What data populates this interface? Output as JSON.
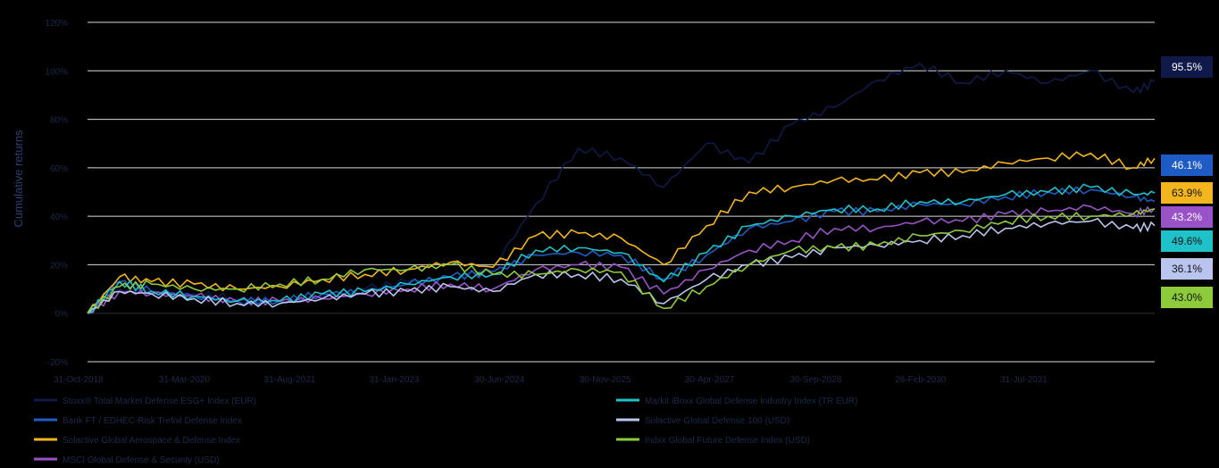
{
  "chart_data": {
    "type": "line",
    "title": "",
    "xlabel": "",
    "ylabel": "Cumulative returns",
    "ylim": [
      -20,
      120
    ],
    "yticks": [
      -20,
      0,
      20,
      40,
      60,
      80,
      100,
      120
    ],
    "ytick_labels": [
      "-20%",
      "0%",
      "20%",
      "40%",
      "60%",
      "80%",
      "100%",
      "120%"
    ],
    "x_tick_labels": [
      "31-Oct-2018",
      "31-Mar-2020",
      "31-Aug-2021",
      "31-Jan-2023",
      "30-Jun-2024",
      "30-Nov-2025",
      "30-Apr-2027",
      "30-Sep-2028",
      "28-Feb-2030",
      "31-Jul-2031"
    ],
    "x_points": [
      0,
      3,
      6,
      10,
      14,
      18,
      22,
      26,
      30,
      34,
      38,
      42,
      46,
      50,
      54,
      58,
      62,
      66,
      70,
      74,
      78,
      82,
      86,
      90,
      94,
      98,
      100
    ],
    "grid": true,
    "legend_position": "bottom",
    "series": [
      {
        "name": "Stoxx® Total Market Defense ESG+ Index (EUR)",
        "color": "#0f1a4a",
        "end_label": "95.5%",
        "values": [
          0,
          10,
          9,
          8,
          6,
          5,
          7,
          10,
          13,
          14,
          19,
          45,
          68,
          64,
          52,
          70,
          62,
          78,
          85,
          96,
          103,
          95,
          100,
          95,
          100,
          91,
          95.5
        ]
      },
      {
        "name": "Bank FT / EDHEC-Risk Trefoil Defense Index",
        "color": "#1f5bc4",
        "end_label": "46.1%",
        "values": [
          0,
          13,
          9,
          7,
          5,
          5,
          8,
          9,
          12,
          15,
          17,
          24,
          25,
          24,
          14,
          24,
          35,
          38,
          42,
          42,
          45,
          45,
          48,
          50,
          51,
          48,
          46.1
        ]
      },
      {
        "name": "Solactive Global Aerospace & Defense Index",
        "color": "#f2b51d",
        "end_label": "63.9%",
        "values": [
          0,
          15,
          13,
          12,
          10,
          11,
          14,
          16,
          18,
          21,
          19,
          32,
          33,
          31,
          20,
          36,
          50,
          52,
          55,
          55,
          58,
          58,
          62,
          64,
          66,
          60,
          63.9
        ]
      },
      {
        "name": "MSCI Global Defense & Security (USD)",
        "color": "#9a52c8",
        "end_label": "43.2%",
        "values": [
          0,
          9,
          8,
          7,
          5,
          5,
          6,
          8,
          10,
          12,
          10,
          18,
          20,
          19,
          8,
          18,
          26,
          30,
          35,
          35,
          38,
          38,
          41,
          42,
          44,
          41,
          43.2
        ]
      },
      {
        "name": "Markit iBoxx Global Defense Industry Index (TR EUR)",
        "color": "#1fc2c9",
        "end_label": "49.6%",
        "values": [
          0,
          13,
          9,
          7,
          5,
          5,
          8,
          9,
          12,
          15,
          16,
          26,
          27,
          25,
          13,
          25,
          36,
          40,
          43,
          43,
          46,
          46,
          49,
          50,
          52,
          49,
          49.6
        ]
      },
      {
        "name": "Solactive Global Defense 100 (USD)",
        "color": "#b9c4ef",
        "end_label": "36.1%",
        "values": [
          0,
          9,
          8,
          6,
          4,
          4,
          6,
          8,
          9,
          11,
          9,
          16,
          16,
          14,
          4,
          14,
          20,
          23,
          27,
          28,
          30,
          32,
          35,
          37,
          38,
          35,
          36.1
        ]
      },
      {
        "name": "Indxx Global Future Defense Index (USD)",
        "color": "#8dcb3a",
        "end_label": "43.0%",
        "values": [
          0,
          11,
          12,
          10,
          10,
          12,
          14,
          18,
          18,
          20,
          16,
          16,
          18,
          17,
          2,
          11,
          20,
          26,
          27,
          28,
          32,
          34,
          38,
          40,
          40,
          41,
          43.0
        ]
      }
    ]
  }
}
